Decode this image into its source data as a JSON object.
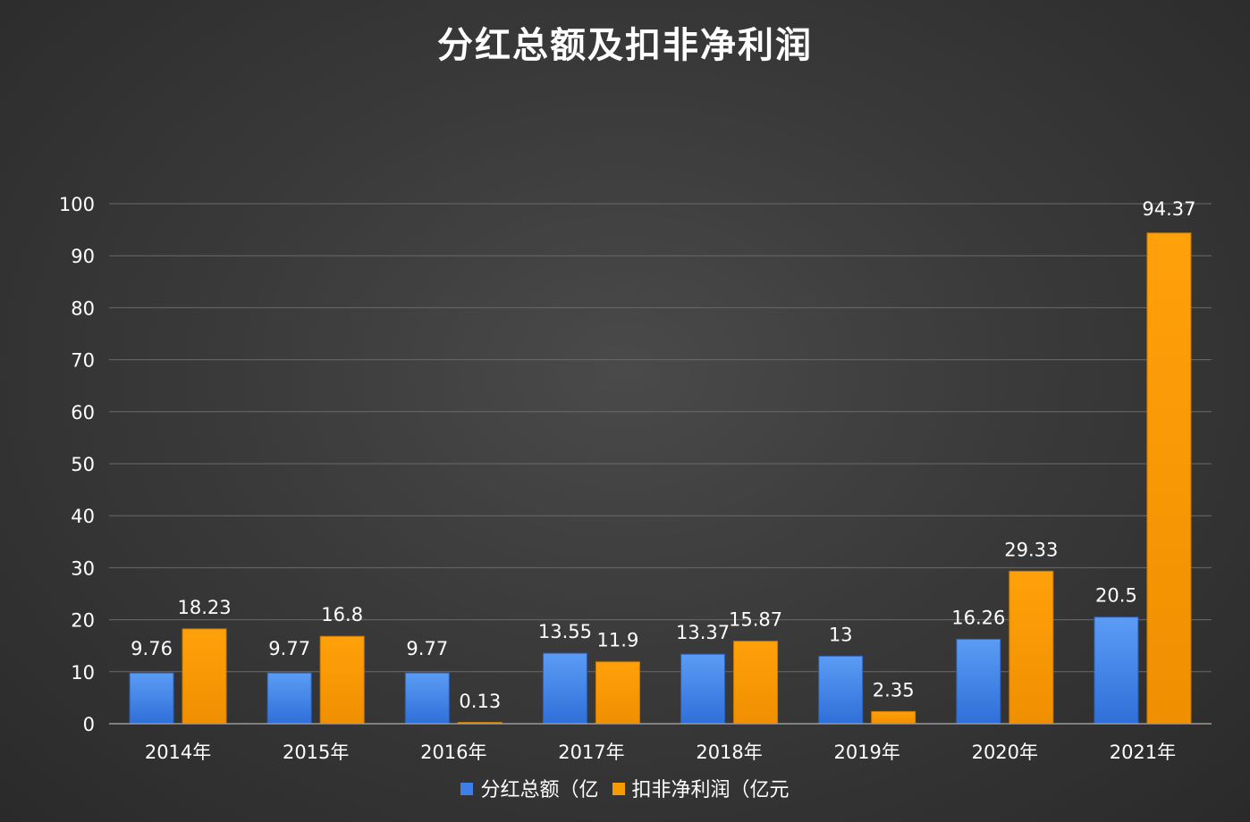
{
  "chart_data": {
    "type": "bar",
    "title": "分红总额及扣非净利润",
    "categories": [
      "2014年",
      "2015年",
      "2016年",
      "2017年",
      "2018年",
      "2019年",
      "2020年",
      "2021年"
    ],
    "series": [
      {
        "name": "分红总额（亿",
        "color": "#3f7ee6",
        "values": [
          9.76,
          9.77,
          9.77,
          13.55,
          13.37,
          13,
          16.26,
          20.5
        ],
        "labels": [
          "9.76",
          "9.77",
          "9.77",
          "13.55",
          "13.37",
          "13",
          "16.26",
          "20.5"
        ]
      },
      {
        "name": "扣非净利润（亿元",
        "color": "#f59a00",
        "values": [
          18.23,
          16.8,
          0.13,
          11.9,
          15.87,
          2.35,
          29.33,
          94.37
        ],
        "labels": [
          "18.23",
          "16.8",
          "0.13",
          "11.9",
          "15.87",
          "2.35",
          "29.33",
          "94.37"
        ]
      }
    ],
    "ylim": [
      0,
      100
    ],
    "yticks": [
      0,
      10,
      20,
      30,
      40,
      50,
      60,
      70,
      80,
      90,
      100
    ],
    "grid": true,
    "legend": "bottom",
    "xlabel": "",
    "ylabel": ""
  }
}
